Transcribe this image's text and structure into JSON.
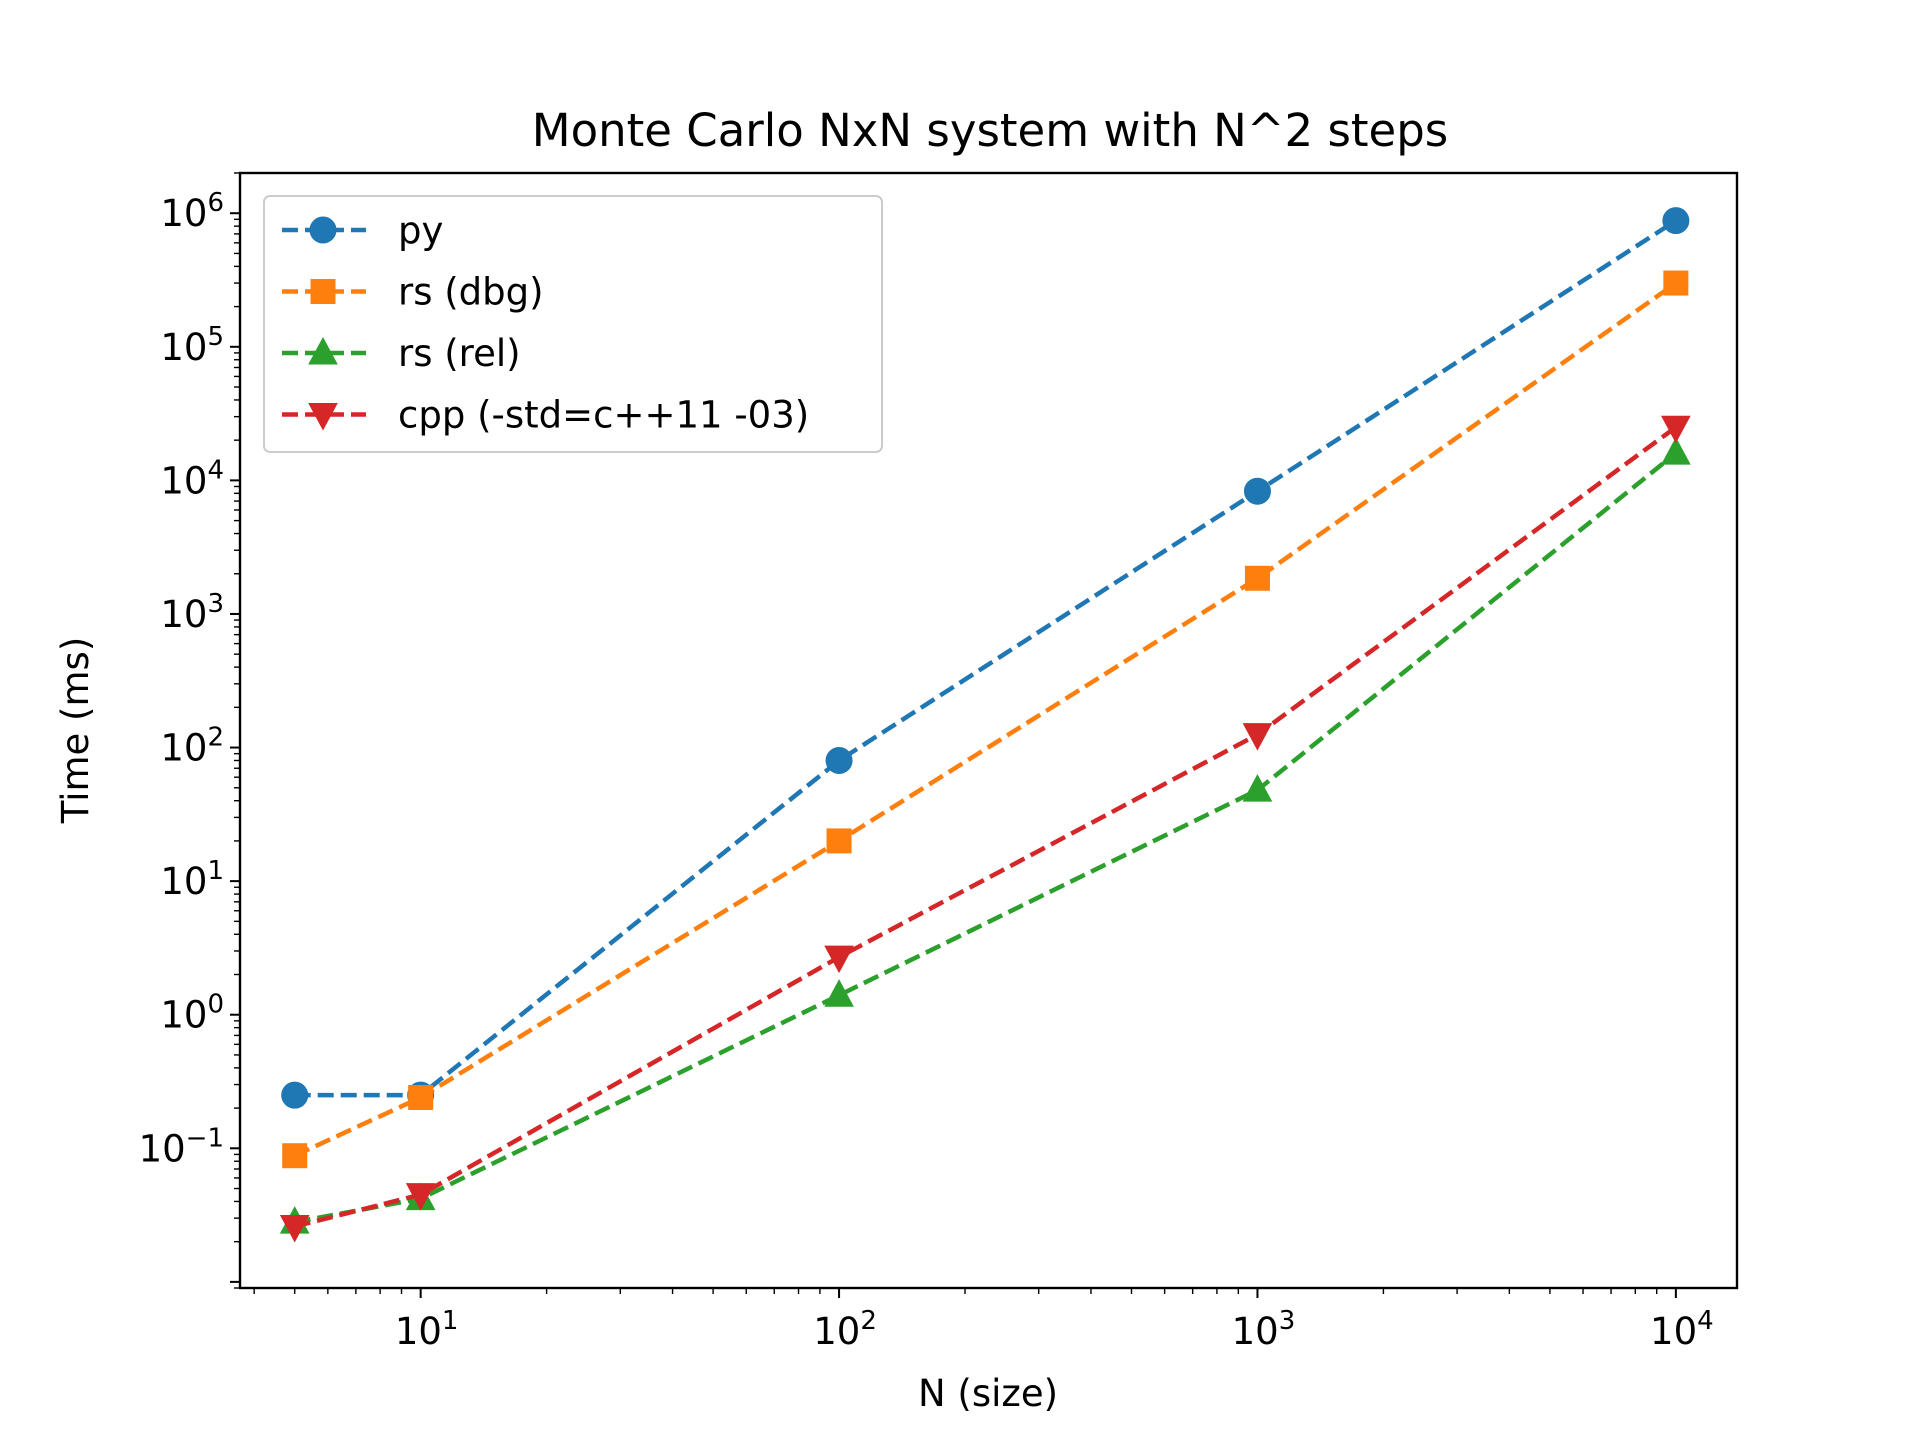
{
  "chart_data": {
    "type": "line",
    "title": "Monte Carlo NxN system with N^2 steps",
    "xlabel": "N (size)",
    "ylabel": "Time (ms)",
    "xscale": "log",
    "yscale": "log",
    "xlim": [
      3.7,
      14000
    ],
    "ylim": [
      0.009,
      2000000
    ],
    "x": [
      5,
      10,
      100,
      1000,
      10000
    ],
    "x_ticks": [
      {
        "value": 10,
        "base": "10",
        "exp": "1"
      },
      {
        "value": 100,
        "base": "10",
        "exp": "2"
      },
      {
        "value": 1000,
        "base": "10",
        "exp": "3"
      },
      {
        "value": 10000,
        "base": "10",
        "exp": "4"
      }
    ],
    "y_ticks": [
      {
        "value": 0.1,
        "base": "10",
        "exp": "−1"
      },
      {
        "value": 1,
        "base": "10",
        "exp": "0"
      },
      {
        "value": 10,
        "base": "10",
        "exp": "1"
      },
      {
        "value": 100,
        "base": "10",
        "exp": "2"
      },
      {
        "value": 1000,
        "base": "10",
        "exp": "3"
      },
      {
        "value": 10000,
        "base": "10",
        "exp": "4"
      },
      {
        "value": 100000,
        "base": "10",
        "exp": "5"
      },
      {
        "value": 1000000,
        "base": "10",
        "exp": "6"
      }
    ],
    "legend_position": "top-left",
    "grid": false,
    "series": [
      {
        "name": "py",
        "color": "#1f77b4",
        "marker": "circle",
        "values": [
          0.25,
          0.25,
          80,
          8300,
          880000
        ]
      },
      {
        "name": "rs (dbg)",
        "color": "#ff7f0e",
        "marker": "square",
        "values": [
          0.088,
          0.24,
          20,
          1850,
          300000
        ]
      },
      {
        "name": "rs (rel)",
        "color": "#2ca02c",
        "marker": "triangle-up",
        "values": [
          0.028,
          0.042,
          1.4,
          48,
          16000
        ]
      },
      {
        "name": "cpp (-std=c++11 -03)",
        "color": "#d62728",
        "marker": "triangle-down",
        "values": [
          0.026,
          0.045,
          2.7,
          125,
          25000
        ]
      }
    ]
  }
}
